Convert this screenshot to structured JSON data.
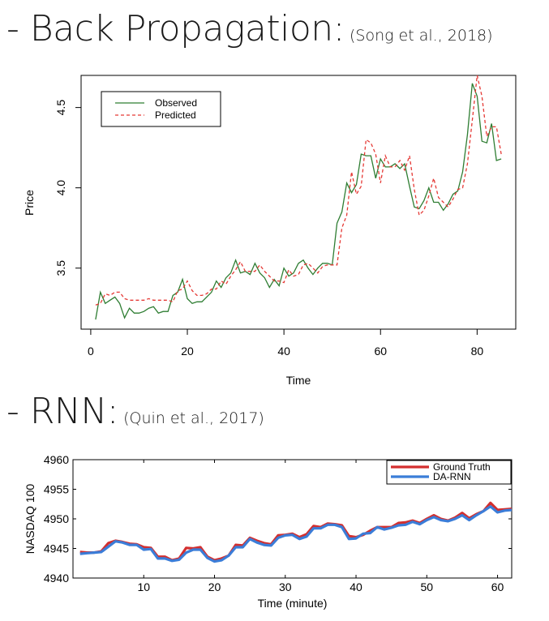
{
  "headings": [
    {
      "main": "- Back Propagation:",
      "cite": "(Song et al., 2018)"
    },
    {
      "main": "- RNN:",
      "cite": "(Quin et al., 2017)"
    }
  ],
  "chart_data": [
    {
      "type": "line",
      "title": "",
      "xlabel": "Time",
      "ylabel": "Price",
      "xlim": [
        -2,
        88
      ],
      "ylim": [
        3.12,
        4.7
      ],
      "xticks": [
        0,
        20,
        40,
        60,
        80
      ],
      "yticks": [
        3.5,
        4.0,
        4.5
      ],
      "xtick_labels": [
        "0",
        "20",
        "40",
        "60",
        "80"
      ],
      "ytick_labels": [
        "3.5",
        "4.0",
        "4.5"
      ],
      "legend_position": "top-left",
      "series": [
        {
          "name": "Observed",
          "color": "#2e7d32",
          "style": "solid",
          "x": [
            1,
            2,
            3,
            4,
            5,
            6,
            7,
            8,
            9,
            10,
            11,
            12,
            13,
            14,
            15,
            16,
            17,
            18,
            19,
            20,
            21,
            22,
            23,
            24,
            25,
            26,
            27,
            28,
            29,
            30,
            31,
            32,
            33,
            34,
            35,
            36,
            37,
            38,
            39,
            40,
            41,
            42,
            43,
            44,
            45,
            46,
            47,
            48,
            49,
            50,
            51,
            52,
            53,
            54,
            55,
            56,
            57,
            58,
            59,
            60,
            61,
            62,
            63,
            64,
            65,
            66,
            67,
            68,
            69,
            70,
            71,
            72,
            73,
            74,
            75,
            76,
            77,
            78,
            79,
            80,
            81,
            82,
            83,
            84,
            85
          ],
          "values": [
            3.18,
            3.35,
            3.28,
            3.3,
            3.32,
            3.28,
            3.19,
            3.25,
            3.22,
            3.22,
            3.23,
            3.25,
            3.26,
            3.22,
            3.23,
            3.23,
            3.33,
            3.35,
            3.43,
            3.31,
            3.28,
            3.29,
            3.29,
            3.32,
            3.35,
            3.42,
            3.38,
            3.44,
            3.47,
            3.55,
            3.47,
            3.48,
            3.46,
            3.53,
            3.47,
            3.44,
            3.38,
            3.43,
            3.39,
            3.5,
            3.45,
            3.47,
            3.53,
            3.55,
            3.5,
            3.46,
            3.5,
            3.53,
            3.53,
            3.52,
            3.78,
            3.85,
            4.03,
            3.97,
            4.02,
            4.21,
            4.2,
            4.2,
            4.06,
            4.18,
            4.13,
            4.13,
            4.15,
            4.12,
            4.15,
            4.01,
            3.88,
            3.87,
            3.92,
            4.0,
            3.91,
            3.91,
            3.86,
            3.9,
            3.96,
            3.98,
            4.1,
            4.33,
            4.65,
            4.57,
            4.29,
            4.28,
            4.4,
            4.17,
            4.18
          ]
        },
        {
          "name": "Predicted",
          "color": "#e53935",
          "style": "dashed",
          "x": [
            1,
            2,
            3,
            4,
            5,
            6,
            7,
            8,
            9,
            10,
            11,
            12,
            13,
            14,
            15,
            16,
            17,
            18,
            19,
            20,
            21,
            22,
            23,
            24,
            25,
            26,
            27,
            28,
            29,
            30,
            31,
            32,
            33,
            34,
            35,
            36,
            37,
            38,
            39,
            40,
            41,
            42,
            43,
            44,
            45,
            46,
            47,
            48,
            49,
            50,
            51,
            52,
            53,
            54,
            55,
            56,
            57,
            58,
            59,
            60,
            61,
            62,
            63,
            64,
            65,
            66,
            67,
            68,
            69,
            70,
            71,
            72,
            73,
            74,
            75,
            76,
            77,
            78,
            79,
            80,
            81,
            82,
            83,
            84,
            85
          ],
          "values": [
            3.27,
            3.28,
            3.34,
            3.33,
            3.35,
            3.35,
            3.31,
            3.3,
            3.3,
            3.3,
            3.3,
            3.31,
            3.3,
            3.3,
            3.3,
            3.3,
            3.29,
            3.36,
            3.37,
            3.42,
            3.36,
            3.33,
            3.33,
            3.34,
            3.37,
            3.37,
            3.42,
            3.4,
            3.45,
            3.49,
            3.54,
            3.48,
            3.48,
            3.48,
            3.52,
            3.48,
            3.45,
            3.42,
            3.42,
            3.41,
            3.49,
            3.45,
            3.46,
            3.52,
            3.53,
            3.5,
            3.47,
            3.51,
            3.52,
            3.52,
            3.52,
            3.75,
            3.83,
            4.1,
            3.96,
            4.01,
            4.3,
            4.28,
            4.21,
            4.03,
            4.2,
            4.13,
            4.13,
            4.17,
            4.11,
            4.2,
            3.99,
            3.83,
            3.86,
            3.95,
            4.06,
            3.94,
            3.91,
            3.88,
            3.93,
            3.99,
            4.0,
            4.15,
            4.42,
            4.7,
            4.57,
            4.32,
            4.38,
            4.38,
            4.21
          ]
        }
      ]
    },
    {
      "type": "line",
      "title": "",
      "xlabel": "Time (minute)",
      "ylabel": "NASDAQ 100",
      "xlim": [
        0,
        62
      ],
      "ylim": [
        4940,
        4960
      ],
      "xticks": [
        10,
        20,
        30,
        40,
        50,
        60
      ],
      "yticks": [
        4940,
        4945,
        4950,
        4955,
        4960
      ],
      "xtick_labels": [
        "10",
        "20",
        "30",
        "40",
        "50",
        "60"
      ],
      "ytick_labels": [
        "4940",
        "4945",
        "4950",
        "4955",
        "4960"
      ],
      "legend_position": "top-right",
      "series": [
        {
          "name": "Ground Truth",
          "color": "#d32f2f",
          "style": "solid",
          "x": [
            1,
            2,
            3,
            4,
            5,
            6,
            7,
            8,
            9,
            10,
            11,
            12,
            13,
            14,
            15,
            16,
            17,
            18,
            19,
            20,
            21,
            22,
            23,
            24,
            25,
            26,
            27,
            28,
            29,
            30,
            31,
            32,
            33,
            34,
            35,
            36,
            37,
            38,
            39,
            40,
            41,
            42,
            43,
            44,
            45,
            46,
            47,
            48,
            49,
            50,
            51,
            52,
            53,
            54,
            55,
            56,
            57,
            58,
            59,
            60,
            61,
            62
          ],
          "values": [
            4944.4,
            4944.3,
            4944.3,
            4944.5,
            4945.9,
            4946.3,
            4946.1,
            4945.8,
            4945.7,
            4945.2,
            4945.1,
            4943.6,
            4943.6,
            4943.0,
            4943.3,
            4945.1,
            4945.0,
            4945.2,
            4943.6,
            4943.0,
            4943.3,
            4943.8,
            4945.6,
            4945.5,
            4946.8,
            4946.3,
            4945.9,
            4945.7,
            4947.2,
            4947.3,
            4947.5,
            4946.9,
            4947.4,
            4948.8,
            4948.6,
            4949.2,
            4949.1,
            4948.9,
            4947.1,
            4946.9,
            4947.3,
            4948.0,
            4948.6,
            4948.6,
            4948.6,
            4949.3,
            4949.4,
            4949.7,
            4949.3,
            4950.0,
            4950.6,
            4950.0,
            4949.7,
            4950.2,
            4951.0,
            4950.1,
            4950.8,
            4951.3,
            4952.7,
            4951.5,
            4951.6,
            4951.7
          ]
        },
        {
          "name": "DA-RNN",
          "color": "#3b7dd8",
          "style": "solid",
          "x": [
            1,
            2,
            3,
            4,
            5,
            6,
            7,
            8,
            9,
            10,
            11,
            12,
            13,
            14,
            15,
            16,
            17,
            18,
            19,
            20,
            21,
            22,
            23,
            24,
            25,
            26,
            27,
            28,
            29,
            30,
            31,
            32,
            33,
            34,
            35,
            36,
            37,
            38,
            39,
            40,
            41,
            42,
            43,
            44,
            45,
            46,
            47,
            48,
            49,
            50,
            51,
            52,
            53,
            54,
            55,
            56,
            57,
            58,
            59,
            60,
            61,
            62
          ],
          "values": [
            4944.1,
            4944.2,
            4944.3,
            4944.4,
            4945.3,
            4946.2,
            4946.0,
            4945.6,
            4945.6,
            4944.8,
            4944.9,
            4943.3,
            4943.3,
            4942.9,
            4943.1,
            4944.3,
            4944.8,
            4944.8,
            4943.4,
            4942.8,
            4943.0,
            4943.8,
            4945.2,
            4945.2,
            4946.6,
            4946.0,
            4945.6,
            4945.5,
            4946.8,
            4947.2,
            4947.3,
            4946.6,
            4947.0,
            4948.4,
            4948.4,
            4949.0,
            4949.0,
            4948.6,
            4946.6,
            4946.7,
            4947.5,
            4947.6,
            4948.6,
            4948.2,
            4948.5,
            4948.9,
            4949.0,
            4949.5,
            4949.1,
            4949.8,
            4950.3,
            4949.8,
            4949.6,
            4950.0,
            4950.6,
            4949.8,
            4950.6,
            4951.3,
            4952.1,
            4951.1,
            4951.4,
            4951.5
          ]
        }
      ]
    }
  ]
}
